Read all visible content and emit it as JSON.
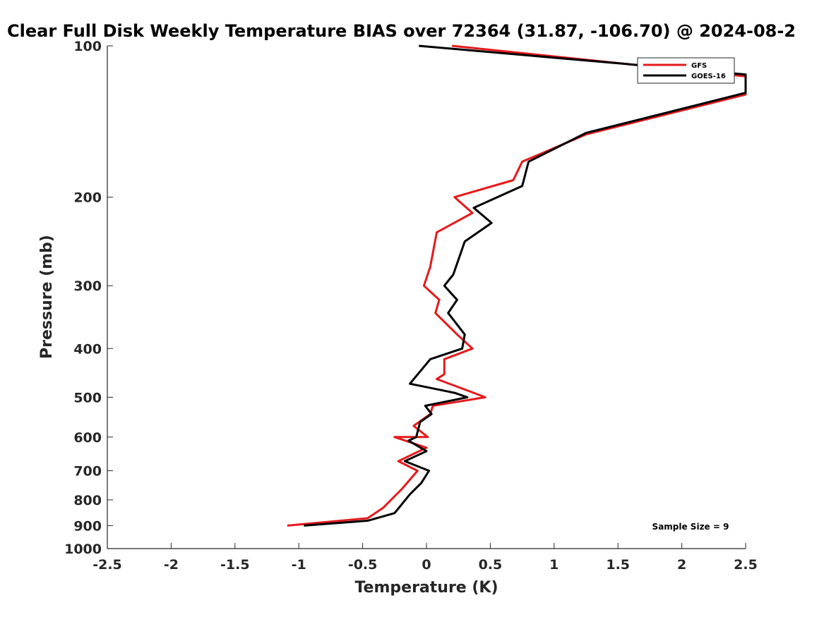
{
  "chart_data": {
    "type": "line",
    "title": "Clear Full Disk Weekly Temperature BIAS over 72364 (31.87, -106.70) @ 2024-08-2",
    "xlabel": "Temperature (K)",
    "ylabel": "Pressure (mb)",
    "xlim": [
      -2.5,
      2.5
    ],
    "ylim": [
      1000,
      100
    ],
    "y_scale": "log",
    "y_reversed": true,
    "grid": false,
    "legend_position": "top-right",
    "x_ticks": [
      -2.5,
      -2,
      -1.5,
      -1,
      -0.5,
      0,
      0.5,
      1,
      1.5,
      2,
      2.5
    ],
    "x_tick_labels": [
      "-2.5",
      "-2",
      "-1.5",
      "-1",
      "-0.5",
      "0",
      "0.5",
      "1",
      "1.5",
      "2",
      "2.5"
    ],
    "y_ticks": [
      100,
      200,
      300,
      400,
      500,
      600,
      700,
      800,
      900,
      1000
    ],
    "y_tick_labels": [
      "100",
      "200",
      "300",
      "400",
      "500",
      "600",
      "700",
      "800",
      "900",
      "1000"
    ],
    "annotation": "Sample Size = 9",
    "series": [
      {
        "name": "GFS",
        "color": "#e41a1c",
        "points": [
          [
            0.2,
            100
          ],
          [
            2.5,
            115
          ],
          [
            2.5,
            125
          ],
          [
            1.25,
            150
          ],
          [
            0.75,
            170
          ],
          [
            0.68,
            185
          ],
          [
            0.22,
            200
          ],
          [
            0.36,
            215
          ],
          [
            0.08,
            235
          ],
          [
            0.03,
            275
          ],
          [
            -0.02,
            300
          ],
          [
            0.1,
            320
          ],
          [
            0.07,
            340
          ],
          [
            0.24,
            375
          ],
          [
            0.36,
            400
          ],
          [
            0.14,
            420
          ],
          [
            0.14,
            450
          ],
          [
            0.08,
            460
          ],
          [
            0.37,
            490
          ],
          [
            0.46,
            500
          ],
          [
            0.05,
            520
          ],
          [
            0.03,
            540
          ],
          [
            -0.1,
            570
          ],
          [
            0.01,
            600
          ],
          [
            -0.25,
            600
          ],
          [
            0.0,
            630
          ],
          [
            -0.22,
            670
          ],
          [
            -0.07,
            700
          ],
          [
            -0.19,
            760
          ],
          [
            -0.34,
            830
          ],
          [
            -0.46,
            870
          ],
          [
            -1.09,
            900
          ]
        ]
      },
      {
        "name": "GOES-16",
        "color": "#000000",
        "points": [
          [
            -0.06,
            100
          ],
          [
            2.5,
            114
          ],
          [
            2.5,
            124
          ],
          [
            1.25,
            149
          ],
          [
            0.8,
            170
          ],
          [
            0.75,
            190
          ],
          [
            0.37,
            210
          ],
          [
            0.51,
            225
          ],
          [
            0.3,
            245
          ],
          [
            0.21,
            285
          ],
          [
            0.14,
            300
          ],
          [
            0.24,
            320
          ],
          [
            0.17,
            340
          ],
          [
            0.3,
            375
          ],
          [
            0.28,
            400
          ],
          [
            0.03,
            420
          ],
          [
            -0.13,
            470
          ],
          [
            0.22,
            490
          ],
          [
            0.32,
            500
          ],
          [
            -0.01,
            520
          ],
          [
            0.04,
            540
          ],
          [
            -0.05,
            560
          ],
          [
            -0.08,
            600
          ],
          [
            -0.14,
            610
          ],
          [
            0.0,
            640
          ],
          [
            -0.17,
            670
          ],
          [
            0.02,
            700
          ],
          [
            -0.04,
            740
          ],
          [
            -0.13,
            780
          ],
          [
            -0.25,
            850
          ],
          [
            -0.46,
            880
          ],
          [
            -0.96,
            900
          ]
        ]
      }
    ]
  }
}
